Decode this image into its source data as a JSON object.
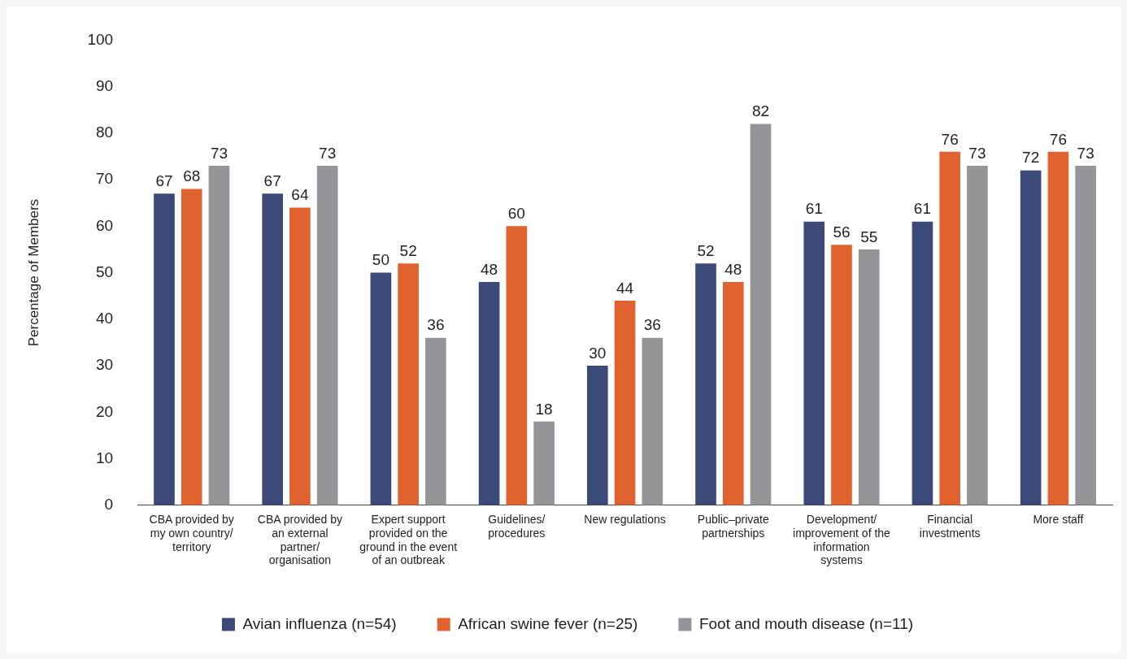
{
  "chart_data": {
    "type": "bar",
    "ylabel": "Percentage of Members",
    "categories": [
      "CBA provided by my own country/ territory",
      "CBA provided by an external partner/ organisation",
      "Expert support provided on the ground in the event of an outbreak",
      "Guidelines/ procedures",
      "New regulations",
      "Public–private partnerships",
      "Development/ improvement of the information systems",
      "Financial investments",
      "More staff"
    ],
    "series": [
      {
        "name": "Avian influenza (n=54)",
        "color": "#3b4a78",
        "values": [
          67,
          67,
          50,
          48,
          30,
          52,
          61,
          61,
          72
        ]
      },
      {
        "name": "African swine fever (n=25)",
        "color": "#e0632f",
        "values": [
          68,
          64,
          52,
          60,
          44,
          48,
          56,
          76,
          76
        ]
      },
      {
        "name": "Foot and mouth disease (n=11)",
        "color": "#939598",
        "values": [
          73,
          73,
          36,
          18,
          36,
          82,
          55,
          73,
          73
        ]
      }
    ],
    "ylim": [
      0,
      100
    ],
    "yticks": [
      0,
      10,
      20,
      30,
      40,
      50,
      60,
      70,
      80,
      90,
      100
    ],
    "grid": false,
    "legend": "bottom",
    "data_labels": true
  }
}
